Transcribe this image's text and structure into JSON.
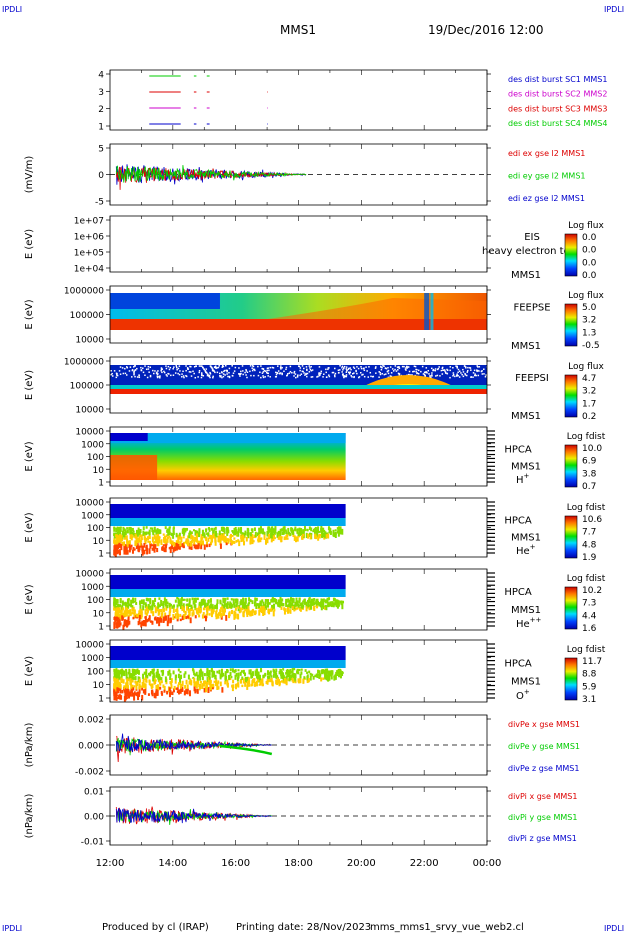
{
  "corners": {
    "tl": "IPDLI",
    "tr": "IPDLI",
    "bl": "IPDLI",
    "br": "IPDLI"
  },
  "header": {
    "title": "MMS1",
    "datetime": "19/Dec/2016 12:00"
  },
  "footer": {
    "produced": "Produced by cl (IRAP)",
    "printing": "Printing date: 28/Nov/2023",
    "file": "mms_mms1_srvy_vue_web2.cl"
  },
  "colors": {
    "black": "#000000",
    "red": "#dd0000",
    "green": "#00cc00",
    "blue": "#0000cc",
    "magenta": "#cc00cc"
  },
  "x_ticks": [
    "12:00",
    "14:00",
    "16:00",
    "18:00",
    "20:00",
    "22:00",
    "00:00"
  ],
  "panels": [
    {
      "id": "des-burst",
      "ylabel": "",
      "yticks": [
        "4",
        "3",
        "2",
        "1"
      ],
      "legend": [
        {
          "text": "des dist burst SC1 MMS1",
          "color": "#0000cc"
        },
        {
          "text": "des dist burst SC2 MMS2",
          "color": "#cc00cc"
        },
        {
          "text": "des dist burst SC3 MMS3",
          "color": "#dd0000"
        },
        {
          "text": "des dist burst SC4 MMS4",
          "color": "#00cc00"
        }
      ]
    },
    {
      "id": "edi",
      "ylabel": "(mV/m)",
      "yticks": [
        "5",
        "0",
        "-5"
      ],
      "legend": [
        {
          "text": "edi ex gse l2 MMS1",
          "color": "#dd0000"
        },
        {
          "text": "edi ey gse l2 MMS1",
          "color": "#00cc00"
        },
        {
          "text": "edi ez gse l2 MMS1",
          "color": "#0000cc"
        }
      ]
    },
    {
      "id": "eis",
      "ylabel": "E (eV)",
      "yticks": [
        "1e+07",
        "1e+06",
        "1e+05",
        "1e+04"
      ],
      "side": [
        "EIS",
        "MMS1"
      ],
      "overlay": "heavy electron to",
      "cb": {
        "title": "Log flux",
        "ticks": [
          "0.0",
          "0.0",
          "0.0",
          "0.0"
        ]
      }
    },
    {
      "id": "feepse",
      "ylabel": "E (eV)",
      "yticks": [
        "1000000",
        "100000",
        "10000"
      ],
      "side": [
        "FEEPSE",
        "MMS1"
      ],
      "cb": {
        "title": "Log flux",
        "ticks": [
          "5.0",
          "3.2",
          "1.3",
          "-0.5"
        ]
      }
    },
    {
      "id": "feepsi",
      "ylabel": "E (eV)",
      "yticks": [
        "1000000",
        "100000",
        "10000"
      ],
      "side": [
        "FEEPSI",
        "MMS1"
      ],
      "cb": {
        "title": "Log flux",
        "ticks": [
          "4.7",
          "3.2",
          "1.7",
          "0.2"
        ]
      }
    },
    {
      "id": "hpca-h",
      "ylabel": "E (eV)",
      "yticks": [
        "10000",
        "1000",
        "100",
        "10",
        "1"
      ],
      "side": [
        "HPCA",
        "MMS1"
      ],
      "species": "H",
      "sup": "+",
      "cb": {
        "title": "Log fdist",
        "ticks": [
          "10.0",
          "6.9",
          "3.8",
          "0.7"
        ]
      }
    },
    {
      "id": "hpca-he",
      "ylabel": "E (eV)",
      "yticks": [
        "10000",
        "1000",
        "100",
        "10",
        "1"
      ],
      "side": [
        "HPCA",
        "MMS1"
      ],
      "species": "He",
      "sup": "+",
      "cb": {
        "title": "Log fdist",
        "ticks": [
          "10.6",
          "7.7",
          "4.8",
          "1.9"
        ]
      }
    },
    {
      "id": "hpca-hepp",
      "ylabel": "E (eV)",
      "yticks": [
        "10000",
        "1000",
        "100",
        "10",
        "1"
      ],
      "side": [
        "HPCA",
        "MMS1"
      ],
      "species": "He",
      "sup": "++",
      "cb": {
        "title": "Log fdist",
        "ticks": [
          "10.2",
          "7.3",
          "4.4",
          "1.6"
        ]
      }
    },
    {
      "id": "hpca-o",
      "ylabel": "E (eV)",
      "yticks": [
        "10000",
        "1000",
        "100",
        "10",
        "1"
      ],
      "side": [
        "HPCA",
        "MMS1"
      ],
      "species": "O",
      "sup": "+",
      "cb": {
        "title": "Log fdist",
        "ticks": [
          "11.7",
          "8.8",
          "5.9",
          "3.1"
        ]
      }
    },
    {
      "id": "divpe",
      "ylabel": "(nPa/km)",
      "yticks": [
        "0.002",
        "0.000",
        "-0.002"
      ],
      "legend": [
        {
          "text": "divPe x gse MMS1",
          "color": "#dd0000"
        },
        {
          "text": "divPe y gse MMS1",
          "color": "#00cc00"
        },
        {
          "text": "divPe z gse MMS1",
          "color": "#0000cc"
        }
      ]
    },
    {
      "id": "divpi",
      "ylabel": "(nPa/km)",
      "yticks": [
        "0.01",
        "0.00",
        "-0.01"
      ],
      "legend": [
        {
          "text": "divPi x gse MMS1",
          "color": "#dd0000"
        },
        {
          "text": "divPi y gse MMS1",
          "color": "#00cc00"
        },
        {
          "text": "divPi z gse MMS1",
          "color": "#0000cc"
        }
      ]
    }
  ],
  "chart_data": [
    {
      "type": "line",
      "panel": "des-burst",
      "x_range": [
        "12:00",
        "00:00"
      ],
      "ylim": [
        1,
        4
      ],
      "series": [
        {
          "name": "des dist burst SC1 MMS1",
          "y": 1,
          "segments": [
            [
              "13:15",
              "14:15"
            ],
            [
              "14:40",
              "14:45"
            ],
            [
              "15:05",
              "15:10"
            ],
            [
              "17:00",
              "17:01"
            ]
          ]
        },
        {
          "name": "des dist burst SC2 MMS2",
          "y": 2,
          "segments": [
            [
              "13:15",
              "14:15"
            ],
            [
              "14:40",
              "14:45"
            ],
            [
              "15:05",
              "15:10"
            ],
            [
              "17:00",
              "17:01"
            ]
          ]
        },
        {
          "name": "des dist burst SC3 MMS3",
          "y": 3,
          "segments": [
            [
              "13:15",
              "14:15"
            ],
            [
              "14:40",
              "14:45"
            ],
            [
              "15:05",
              "15:10"
            ],
            [
              "17:00",
              "17:01"
            ]
          ]
        },
        {
          "name": "des dist burst SC4 MMS4",
          "y": 4,
          "segments": [
            [
              "13:15",
              "14:15"
            ],
            [
              "14:40",
              "14:45"
            ],
            [
              "15:05",
              "15:10"
            ]
          ]
        }
      ]
    },
    {
      "type": "line",
      "panel": "edi",
      "ylim": [
        -5,
        5
      ],
      "data_end": "18:15",
      "series": [
        {
          "name": "edi ex gse l2 MMS1",
          "peak": 6
        },
        {
          "name": "edi ey gse l2 MMS1",
          "peak": 3
        },
        {
          "name": "edi ez gse l2 MMS1",
          "peak": 2
        }
      ]
    },
    {
      "type": "heatmap",
      "panel": "eis",
      "ylim": [
        "1e+04",
        "1e+07"
      ],
      "empty": true
    },
    {
      "type": "heatmap",
      "panel": "feepse",
      "ylim": [
        10000,
        1000000
      ],
      "data_end": "00:00"
    },
    {
      "type": "heatmap",
      "panel": "feepsi",
      "ylim": [
        10000,
        1000000
      ],
      "data_end": "00:00"
    },
    {
      "type": "heatmap",
      "panel": "hpca-h",
      "ylim": [
        1,
        10000
      ],
      "data_end": "19:30"
    },
    {
      "type": "heatmap",
      "panel": "hpca-he",
      "ylim": [
        1,
        10000
      ],
      "data_end": "19:30"
    },
    {
      "type": "heatmap",
      "panel": "hpca-hepp",
      "ylim": [
        1,
        10000
      ],
      "data_end": "19:30"
    },
    {
      "type": "heatmap",
      "panel": "hpca-o",
      "ylim": [
        1,
        10000
      ],
      "data_end": "19:30"
    },
    {
      "type": "line",
      "panel": "divpe",
      "ylim": [
        -0.003,
        0.003
      ],
      "data_end": "17:10"
    },
    {
      "type": "line",
      "panel": "divpi",
      "ylim": [
        -0.015,
        0.015
      ],
      "data_end": "17:10"
    }
  ]
}
